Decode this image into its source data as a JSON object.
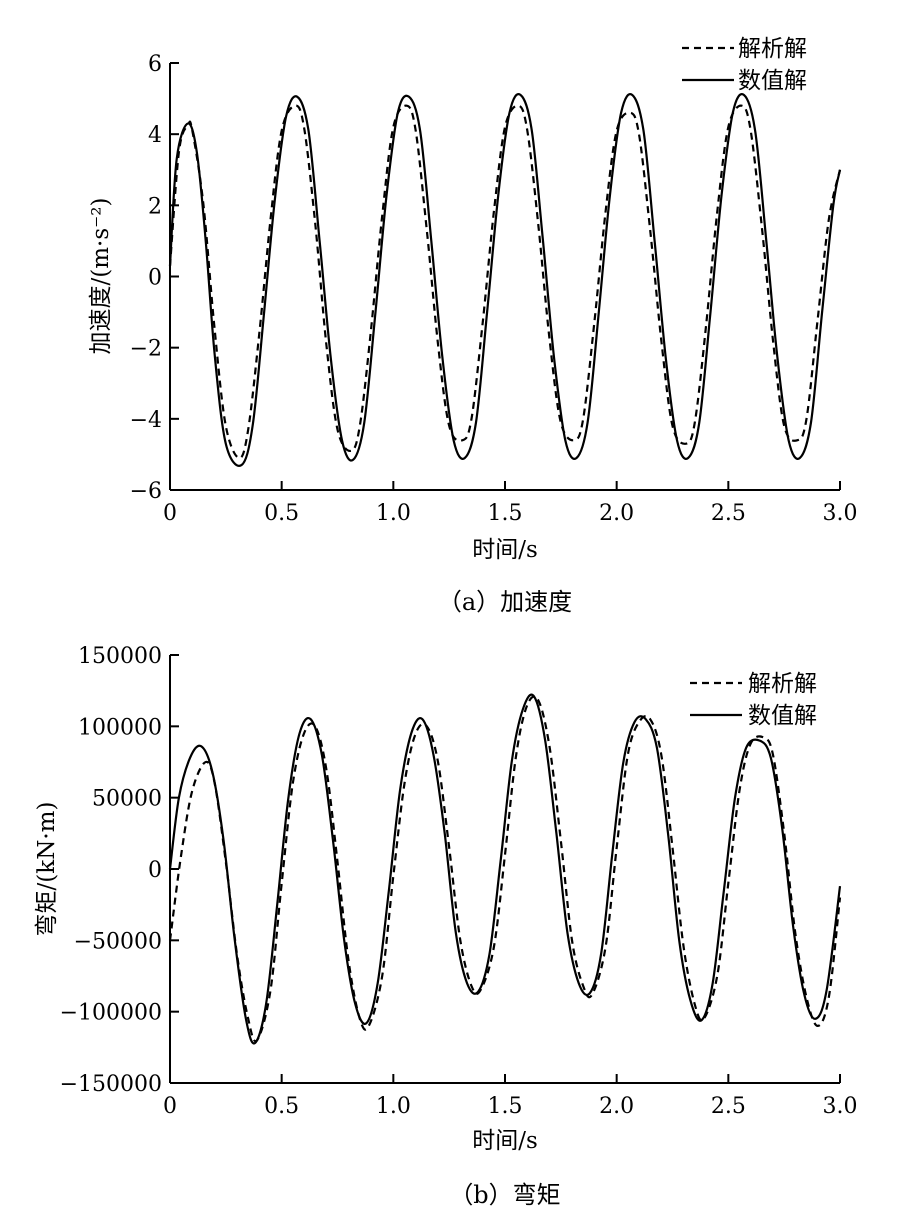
{
  "chart_data": [
    {
      "type": "line",
      "caption": "（a）加速度",
      "xlabel": "时间/s",
      "ylabel": "加速度/(m·s⁻²)",
      "xlim": [
        0,
        3.0
      ],
      "ylim": [
        -6,
        6
      ],
      "x_ticks": [
        0,
        0.5,
        1.0,
        1.5,
        2.0,
        2.5,
        3.0
      ],
      "x_tick_labels": [
        "0",
        "0.5",
        "1.0",
        "1.5",
        "2.0",
        "2.5",
        "3.0"
      ],
      "y_ticks": [
        -6,
        -4,
        -2,
        0,
        2,
        4,
        6
      ],
      "y_tick_labels": [
        "−6",
        "−4",
        "−2",
        "0",
        "2",
        "4",
        "6"
      ],
      "grid": false,
      "legend_position": "top-right",
      "series": [
        {
          "name": "解析解",
          "style": "dashed",
          "x": [
            0,
            0.04,
            0.08,
            0.1,
            0.15,
            0.2,
            0.25,
            0.31,
            0.35,
            0.4,
            0.45,
            0.5,
            0.56,
            0.6,
            0.65,
            0.7,
            0.75,
            0.81,
            0.85,
            0.9,
            0.95,
            1.0,
            1.06,
            1.1,
            1.15,
            1.2,
            1.25,
            1.31,
            1.35,
            1.4,
            1.45,
            1.5,
            1.56,
            1.6,
            1.65,
            1.7,
            1.75,
            1.81,
            1.85,
            1.9,
            1.95,
            2.0,
            2.06,
            2.1,
            2.15,
            2.2,
            2.25,
            2.31,
            2.35,
            2.4,
            2.45,
            2.5,
            2.56,
            2.6,
            2.65,
            2.7,
            2.75,
            2.81,
            2.85,
            2.9,
            2.95,
            3.0
          ],
          "y": [
            0.3,
            3.5,
            4.25,
            4.1,
            2.0,
            -1.5,
            -4.2,
            -5.1,
            -4.3,
            -1.6,
            1.6,
            4.1,
            4.8,
            4.2,
            1.5,
            -1.9,
            -4.3,
            -4.9,
            -4.2,
            -1.5,
            1.7,
            4.2,
            4.8,
            4.1,
            1.3,
            -1.9,
            -4.2,
            -4.6,
            -4.0,
            -1.3,
            1.8,
            4.2,
            4.8,
            4.1,
            1.4,
            -1.8,
            -4.1,
            -4.6,
            -4.0,
            -1.3,
            1.8,
            4.1,
            4.6,
            4.0,
            1.3,
            -1.8,
            -4.2,
            -4.7,
            -4.1,
            -1.4,
            1.8,
            4.2,
            4.8,
            4.1,
            1.4,
            -1.8,
            -4.2,
            -4.6,
            -4.0,
            -1.2,
            1.6,
            3.0
          ]
        },
        {
          "name": "数值解",
          "style": "solid",
          "x": [
            0,
            0.03,
            0.08,
            0.12,
            0.16,
            0.2,
            0.25,
            0.32,
            0.37,
            0.42,
            0.47,
            0.52,
            0.57,
            0.62,
            0.67,
            0.72,
            0.77,
            0.82,
            0.87,
            0.92,
            0.97,
            1.02,
            1.07,
            1.12,
            1.17,
            1.22,
            1.27,
            1.32,
            1.37,
            1.42,
            1.47,
            1.52,
            1.57,
            1.62,
            1.67,
            1.72,
            1.77,
            1.82,
            1.87,
            1.92,
            1.97,
            2.02,
            2.07,
            2.12,
            2.17,
            2.22,
            2.27,
            2.32,
            2.37,
            2.42,
            2.47,
            2.52,
            2.57,
            2.62,
            2.67,
            2.72,
            2.77,
            2.82,
            2.87,
            2.92,
            2.97,
            3.0
          ],
          "y": [
            0.3,
            3.3,
            4.3,
            3.5,
            1.0,
            -2.2,
            -4.7,
            -5.3,
            -4.2,
            -1.1,
            2.2,
            4.5,
            5.05,
            4.1,
            1.0,
            -2.3,
            -4.6,
            -5.15,
            -4.1,
            -1.0,
            2.3,
            4.6,
            5.05,
            4.1,
            1.0,
            -2.3,
            -4.6,
            -5.1,
            -4.1,
            -1.0,
            2.3,
            4.6,
            5.1,
            4.1,
            1.0,
            -2.3,
            -4.6,
            -5.1,
            -4.1,
            -1.0,
            2.3,
            4.6,
            5.1,
            4.1,
            1.0,
            -2.3,
            -4.6,
            -5.1,
            -4.1,
            -1.0,
            2.3,
            4.6,
            5.1,
            4.1,
            1.0,
            -2.3,
            -4.6,
            -5.1,
            -4.1,
            -1.0,
            2.0,
            3.0
          ]
        }
      ]
    },
    {
      "type": "line",
      "caption": "（b）弯矩",
      "xlabel": "时间/s",
      "ylabel": "弯矩/(kN·m)",
      "xlim": [
        0,
        3.0
      ],
      "ylim": [
        -150000,
        150000
      ],
      "x_ticks": [
        0,
        0.5,
        1.0,
        1.5,
        2.0,
        2.5,
        3.0
      ],
      "x_tick_labels": [
        "0",
        "0.5",
        "1.0",
        "1.5",
        "2.0",
        "2.5",
        "3.0"
      ],
      "y_ticks": [
        -150000,
        -100000,
        -50000,
        0,
        50000,
        100000,
        150000
      ],
      "y_tick_labels": [
        "−150000",
        "−100000",
        "−50000",
        "0",
        "50000",
        "100000",
        "150000"
      ],
      "grid": false,
      "legend_position": "top-right",
      "series": [
        {
          "name": "解析解",
          "style": "dashed",
          "x": [
            0,
            0.05,
            0.1,
            0.16,
            0.2,
            0.25,
            0.3,
            0.35,
            0.39,
            0.45,
            0.5,
            0.55,
            0.6,
            0.65,
            0.7,
            0.75,
            0.8,
            0.85,
            0.89,
            0.95,
            1.0,
            1.05,
            1.1,
            1.15,
            1.2,
            1.25,
            1.3,
            1.35,
            1.39,
            1.45,
            1.5,
            1.55,
            1.6,
            1.65,
            1.7,
            1.75,
            1.8,
            1.85,
            1.89,
            1.95,
            2.0,
            2.05,
            2.1,
            2.15,
            2.2,
            2.25,
            2.3,
            2.35,
            2.39,
            2.45,
            2.5,
            2.55,
            2.6,
            2.66,
            2.7,
            2.75,
            2.8,
            2.85,
            2.9,
            2.95,
            3.0
          ],
          "y": [
            -50000,
            10000,
            55000,
            75000,
            60000,
            5000,
            -60000,
            -105000,
            -120000,
            -85000,
            -10000,
            60000,
            95000,
            100000,
            70000,
            5000,
            -65000,
            -105000,
            -110000,
            -75000,
            -5000,
            60000,
            95000,
            100000,
            75000,
            15000,
            -50000,
            -82000,
            -85000,
            -55000,
            10000,
            80000,
            115000,
            118000,
            85000,
            20000,
            -50000,
            -82000,
            -88000,
            -55000,
            15000,
            80000,
            103000,
            105000,
            80000,
            15000,
            -55000,
            -95000,
            -105000,
            -75000,
            -10000,
            55000,
            88000,
            92000,
            80000,
            25000,
            -45000,
            -90000,
            -110000,
            -90000,
            -20000
          ]
        },
        {
          "name": "数值解",
          "style": "solid",
          "x": [
            0,
            0.04,
            0.09,
            0.14,
            0.19,
            0.24,
            0.29,
            0.34,
            0.38,
            0.43,
            0.48,
            0.53,
            0.58,
            0.63,
            0.68,
            0.73,
            0.78,
            0.83,
            0.88,
            0.93,
            0.98,
            1.03,
            1.08,
            1.13,
            1.18,
            1.23,
            1.28,
            1.33,
            1.38,
            1.43,
            1.48,
            1.53,
            1.58,
            1.63,
            1.68,
            1.73,
            1.78,
            1.83,
            1.88,
            1.93,
            1.98,
            2.03,
            2.08,
            2.13,
            2.18,
            2.23,
            2.28,
            2.33,
            2.38,
            2.43,
            2.48,
            2.53,
            2.58,
            2.64,
            2.69,
            2.74,
            2.79,
            2.84,
            2.89,
            2.94,
            3.0
          ],
          "y": [
            0,
            50000,
            78000,
            86000,
            68000,
            20000,
            -50000,
            -105000,
            -122000,
            -95000,
            -25000,
            50000,
            95000,
            105000,
            80000,
            20000,
            -50000,
            -95000,
            -108000,
            -80000,
            -15000,
            55000,
            95000,
            105000,
            80000,
            25000,
            -45000,
            -80000,
            -86000,
            -60000,
            5000,
            75000,
            112000,
            121000,
            90000,
            25000,
            -45000,
            -80000,
            -87000,
            -60000,
            10000,
            75000,
            103000,
            105000,
            85000,
            25000,
            -50000,
            -92000,
            -106000,
            -80000,
            -15000,
            50000,
            85000,
            90000,
            78000,
            30000,
            -40000,
            -88000,
            -105000,
            -85000,
            -12000
          ]
        }
      ]
    }
  ]
}
